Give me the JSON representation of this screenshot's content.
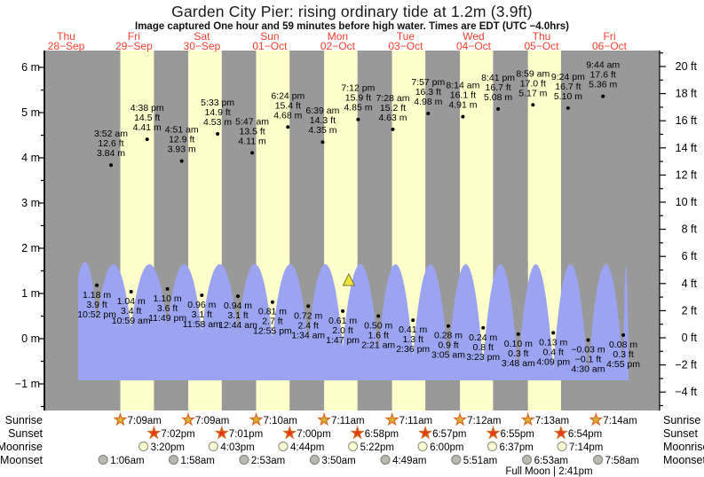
{
  "header": {
    "title": "Garden City Pier: rising ordinary tide at 1.2m (3.9ft)",
    "subtitle": "Image captured One hour and 59 minutes before high water. Times are EDT (UTC −4.0hrs)"
  },
  "colors": {
    "night_band": "#999999",
    "day_band": "#ffffcc",
    "tide_fill": "#9aa4f0",
    "day_label": "#f4402e",
    "text": "#000000",
    "sunrise_fill": "#d2b92f",
    "sunrise_stroke": "#e06a28",
    "sunset_fill": "#ea3515",
    "sunset_stroke": "#d06a20",
    "moonrise_fill": "#ffffd6",
    "moonrise_stroke": "#9a9a8a",
    "moonset_fill": "#b9b9b0",
    "moonset_stroke": "#8a8a82",
    "marker_fill": "#f2e23e",
    "marker_stroke": "#77772a"
  },
  "chart_data": {
    "type": "area",
    "title": "Garden City Pier tide forecast",
    "x_axis": "days 28-Sep to 06-Oct (time, EDT)",
    "ylabel_left": "meters",
    "ylabel_right": "feet",
    "ylim_m": [
      -1.57,
      6.27
    ],
    "ylim_ft": [
      -5.2,
      20.6
    ],
    "grid": false,
    "legend": "none",
    "days": [
      {
        "name": "Thu",
        "date": "28−Sep"
      },
      {
        "name": "Fri",
        "date": "29−Sep"
      },
      {
        "name": "Sat",
        "date": "30−Sep"
      },
      {
        "name": "Sun",
        "date": "01−Oct"
      },
      {
        "name": "Mon",
        "date": "02−Oct"
      },
      {
        "name": "Tue",
        "date": "03−Oct"
      },
      {
        "name": "Wed",
        "date": "04−Oct"
      },
      {
        "name": "Thu",
        "date": "05−Oct"
      },
      {
        "name": "Fri",
        "date": "06−Oct"
      }
    ],
    "axes": {
      "left": [
        {
          "label": "6 m",
          "value": 6
        },
        {
          "label": "5 m",
          "value": 5
        },
        {
          "label": "4 m",
          "value": 4
        },
        {
          "label": "3 m",
          "value": 3
        },
        {
          "label": "2 m",
          "value": 2
        },
        {
          "label": "1 m",
          "value": 1
        },
        {
          "label": "0 m",
          "value": 0
        },
        {
          "label": "−1 m",
          "value": -1
        }
      ],
      "right": [
        {
          "label": "20 ft",
          "value": 20
        },
        {
          "label": "18 ft",
          "value": 18
        },
        {
          "label": "16 ft",
          "value": 16
        },
        {
          "label": "14 ft",
          "value": 14
        },
        {
          "label": "12 ft",
          "value": 12
        },
        {
          "label": "10 ft",
          "value": 10
        },
        {
          "label": "8 ft",
          "value": 8
        },
        {
          "label": "6 ft",
          "value": 6
        },
        {
          "label": "4 ft",
          "value": 4
        },
        {
          "label": "2 ft",
          "value": 2
        },
        {
          "label": "0 ft",
          "value": 0
        },
        {
          "label": "−2 ft",
          "value": -2
        },
        {
          "label": "−4 ft",
          "value": -4
        }
      ]
    },
    "high_tides": [
      {
        "day": 1,
        "time": "3:52 am",
        "ft": "12.6 ft",
        "m": "3.84 m",
        "m_val": 3.84
      },
      {
        "day": 1,
        "time": "4:38 pm",
        "ft": "14.5 ft",
        "m": "4.41 m",
        "m_val": 4.41
      },
      {
        "day": 2,
        "time": "4:51 am",
        "ft": "12.9 ft",
        "m": "3.93 m",
        "m_val": 3.93
      },
      {
        "day": 2,
        "time": "5:33 pm",
        "ft": "14.9 ft",
        "m": "4.53 m",
        "m_val": 4.53
      },
      {
        "day": 3,
        "time": "5:47 am",
        "ft": "13.5 ft",
        "m": "4.11 m",
        "m_val": 4.11
      },
      {
        "day": 3,
        "time": "6:24 pm",
        "ft": "15.4 ft",
        "m": "4.68 m",
        "m_val": 4.68
      },
      {
        "day": 4,
        "time": "6:39 am",
        "ft": "14.3 ft",
        "m": "4.35 m",
        "m_val": 4.35
      },
      {
        "day": 4,
        "time": "7:12 pm",
        "ft": "15.9 ft",
        "m": "4.85 m",
        "m_val": 4.85
      },
      {
        "day": 5,
        "time": "7:28 am",
        "ft": "15.2 ft",
        "m": "4.63 m",
        "m_val": 4.63
      },
      {
        "day": 5,
        "time": "7:57 pm",
        "ft": "16.3 ft",
        "m": "4.98 m",
        "m_val": 4.98
      },
      {
        "day": 6,
        "time": "8:14 am",
        "ft": "16.1 ft",
        "m": "4.91 m",
        "m_val": 4.91
      },
      {
        "day": 6,
        "time": "8:41 pm",
        "ft": "16.7 ft",
        "m": "5.08 m",
        "m_val": 5.08
      },
      {
        "day": 7,
        "time": "8:59 am",
        "ft": "17.0 ft",
        "m": "5.17 m",
        "m_val": 5.17
      },
      {
        "day": 7,
        "time": "9:24 pm",
        "ft": "16.7 ft",
        "m": "5.10 m",
        "m_val": 5.1
      },
      {
        "day": 8,
        "time": "9:44 am",
        "ft": "17.6 ft",
        "m": "5.36 m",
        "m_val": 5.36
      }
    ],
    "low_tides": [
      {
        "day": 0,
        "time": "10:52 pm",
        "m": "1.18 m",
        "ft": "3.9 ft",
        "m_val": 1.18
      },
      {
        "day": 1,
        "time": "10:59 am",
        "m": "1.04 m",
        "ft": "3.4 ft",
        "m_val": 1.04
      },
      {
        "day": 1,
        "time": "11:49 pm",
        "m": "1.10 m",
        "ft": "3.6 ft",
        "m_val": 1.1
      },
      {
        "day": 2,
        "time": "11:58 am",
        "m": "0.96 m",
        "ft": "3.1 ft",
        "m_val": 0.96
      },
      {
        "day": 3,
        "time": "12:44 am",
        "m": "0.94 m",
        "ft": "3.1 ft",
        "m_val": 0.94
      },
      {
        "day": 3,
        "time": "12:55 pm",
        "m": "0.81 m",
        "ft": "2.7 ft",
        "m_val": 0.81
      },
      {
        "day": 4,
        "time": "1:34 am",
        "m": "0.72 m",
        "ft": "2.4 ft",
        "m_val": 0.72
      },
      {
        "day": 4,
        "time": "1:47 pm",
        "m": "0.61 m",
        "ft": "2.0 ft",
        "m_val": 0.61
      },
      {
        "day": 5,
        "time": "2:21 am",
        "m": "0.50 m",
        "ft": "1.6 ft",
        "m_val": 0.5
      },
      {
        "day": 5,
        "time": "2:36 pm",
        "m": "0.41 m",
        "ft": "1.3 ft",
        "m_val": 0.41
      },
      {
        "day": 6,
        "time": "3:05 am",
        "m": "0.28 m",
        "ft": "0.9 ft",
        "m_val": 0.28
      },
      {
        "day": 6,
        "time": "3:23 pm",
        "m": "0.24 m",
        "ft": "0.8 ft",
        "m_val": 0.24
      },
      {
        "day": 7,
        "time": "3:48 am",
        "m": "0.10 m",
        "ft": "0.3 ft",
        "m_val": 0.1
      },
      {
        "day": 7,
        "time": "4:09 pm",
        "m": "0.13 m",
        "ft": "0.4 ft",
        "m_val": 0.13
      },
      {
        "day": 8,
        "time": "4:30 am",
        "m": "−0.03 m",
        "ft": "−0.1 ft",
        "m_val": -0.03
      },
      {
        "day": 8,
        "time": "4:55 pm",
        "m": "0.08 m",
        "ft": "0.3 ft",
        "m_val": 0.08
      }
    ],
    "current_time_marker": {
      "day": 4,
      "hours": 15.9
    }
  },
  "astro": {
    "rows": [
      {
        "label": "Sunrise",
        "icon": "sunrise-star",
        "events": [
          {
            "day": 1,
            "time": "7:09am"
          },
          {
            "day": 2,
            "time": "7:09am"
          },
          {
            "day": 3,
            "time": "7:10am"
          },
          {
            "day": 4,
            "time": "7:11am"
          },
          {
            "day": 5,
            "time": "7:11am"
          },
          {
            "day": 6,
            "time": "7:12am"
          },
          {
            "day": 7,
            "time": "7:13am"
          },
          {
            "day": 8,
            "time": "7:14am"
          }
        ]
      },
      {
        "label": "Sunset",
        "icon": "sunset-star",
        "events": [
          {
            "day": 1,
            "time": "7:02pm"
          },
          {
            "day": 2,
            "time": "7:01pm"
          },
          {
            "day": 3,
            "time": "7:00pm"
          },
          {
            "day": 4,
            "time": "6:58pm"
          },
          {
            "day": 5,
            "time": "6:57pm"
          },
          {
            "day": 6,
            "time": "6:55pm"
          },
          {
            "day": 7,
            "time": "6:54pm"
          }
        ]
      },
      {
        "label": "Moonrise",
        "icon": "moonrise-circle",
        "events": [
          {
            "day": 1,
            "time": "3:20pm"
          },
          {
            "day": 2,
            "time": "4:03pm"
          },
          {
            "day": 3,
            "time": "4:44pm"
          },
          {
            "day": 4,
            "time": "5:22pm"
          },
          {
            "day": 5,
            "time": "6:00pm"
          },
          {
            "day": 6,
            "time": "6:37pm"
          },
          {
            "day": 7,
            "time": "7:14pm"
          }
        ]
      },
      {
        "label": "Moonset",
        "icon": "moonset-circle",
        "events": [
          {
            "day": 1,
            "time": "1:06am"
          },
          {
            "day": 2,
            "time": "1:58am"
          },
          {
            "day": 3,
            "time": "2:53am"
          },
          {
            "day": 4,
            "time": "3:50am"
          },
          {
            "day": 5,
            "time": "4:49am"
          },
          {
            "day": 6,
            "time": "5:51am"
          },
          {
            "day": 7,
            "time": "6:53am"
          },
          {
            "day": 8,
            "time": "7:58am"
          }
        ]
      }
    ],
    "full_moon": {
      "text": "Full Moon | 2:41pm",
      "day": 7,
      "hours": 14.68
    }
  }
}
